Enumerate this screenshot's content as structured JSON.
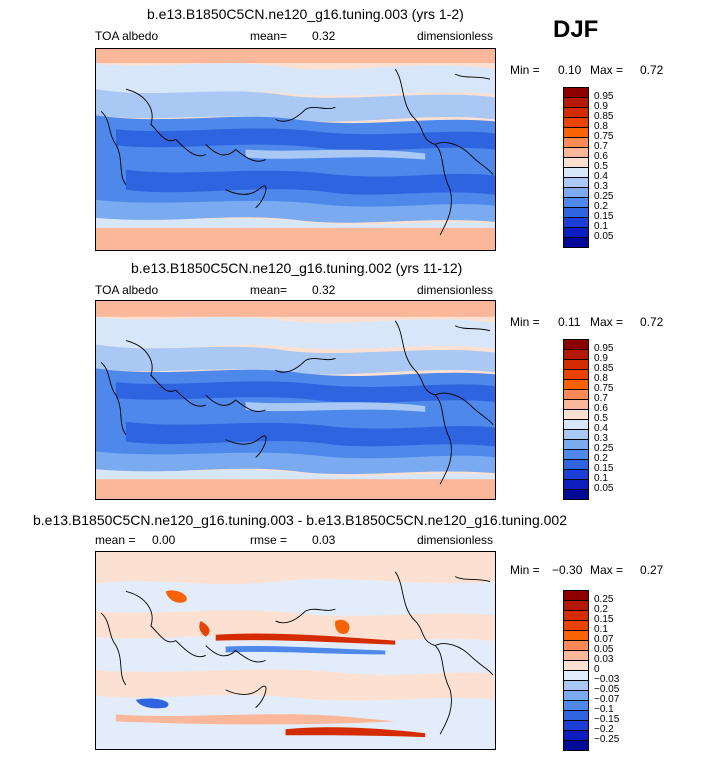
{
  "season": "DJF",
  "panels": [
    {
      "title": "b.e13.B1850C5CN.ne120_g16.tuning.003 (yrs 1-2)",
      "var_label": "TOA albedo",
      "stat1_label": "mean=",
      "stat1_value": "0.32",
      "stat2_label": "",
      "stat2_value": "",
      "units": "dimensionless",
      "min_label": "Min =",
      "min_value": "0.10",
      "max_label": "Max =",
      "max_value": "0.72",
      "colorbar": {
        "labels": [
          "0.95",
          "0.9",
          "0.85",
          "0.8",
          "0.75",
          "0.7",
          "0.6",
          "0.5",
          "0.4",
          "0.3",
          "0.25",
          "0.2",
          "0.15",
          "0.1",
          "0.05"
        ],
        "colors": [
          "#8c0000",
          "#b51a00",
          "#d42b00",
          "#ea4200",
          "#f86200",
          "#fb8a55",
          "#fbb79a",
          "#fce1d2",
          "#d8e6fa",
          "#a9c8f4",
          "#7aaaf0",
          "#4d88ea",
          "#2f64e0",
          "#1a3ed6",
          "#0b1fbf",
          "#000a96"
        ]
      }
    },
    {
      "title": "b.e13.B1850C5CN.ne120_g16.tuning.002 (yrs 11-12)",
      "var_label": "TOA albedo",
      "stat1_label": "mean=",
      "stat1_value": "0.32",
      "stat2_label": "",
      "stat2_value": "",
      "units": "dimensionless",
      "min_label": "Min =",
      "min_value": "0.11",
      "max_label": "Max =",
      "max_value": "0.72",
      "colorbar": {
        "labels": [
          "0.95",
          "0.9",
          "0.85",
          "0.8",
          "0.75",
          "0.7",
          "0.6",
          "0.5",
          "0.4",
          "0.3",
          "0.25",
          "0.2",
          "0.15",
          "0.1",
          "0.05"
        ],
        "colors": [
          "#8c0000",
          "#b51a00",
          "#d42b00",
          "#ea4200",
          "#f86200",
          "#fb8a55",
          "#fbb79a",
          "#fce1d2",
          "#d8e6fa",
          "#a9c8f4",
          "#7aaaf0",
          "#4d88ea",
          "#2f64e0",
          "#1a3ed6",
          "#0b1fbf",
          "#000a96"
        ]
      }
    },
    {
      "title": "b.e13.B1850C5CN.ne120_g16.tuning.003 - b.e13.B1850C5CN.ne120_g16.tuning.002",
      "var_label": "",
      "stat1_label": "mean =",
      "stat1_value": "0.00",
      "stat2_label": "rmse =",
      "stat2_value": "0.03",
      "units": "dimensionless",
      "min_label": "Min =",
      "min_value": "−0.30",
      "max_label": "Max =",
      "max_value": "0.27",
      "colorbar": {
        "labels": [
          "0.25",
          "0.2",
          "0.15",
          "0.1",
          "0.07",
          "0.05",
          "0.03",
          "0",
          "−0.03",
          "−0.05",
          "−0.07",
          "−0.1",
          "−0.15",
          "−0.2",
          "−0.25"
        ],
        "colors": [
          "#8c0000",
          "#b51a00",
          "#d42b00",
          "#ea4200",
          "#f86200",
          "#fb8a55",
          "#fbb79a",
          "#fce1d2",
          "#e3ecfa",
          "#a9c8f4",
          "#7aaaf0",
          "#4d88ea",
          "#2f64e0",
          "#1a3ed6",
          "#0b1fbf",
          "#000a96"
        ]
      }
    }
  ]
}
